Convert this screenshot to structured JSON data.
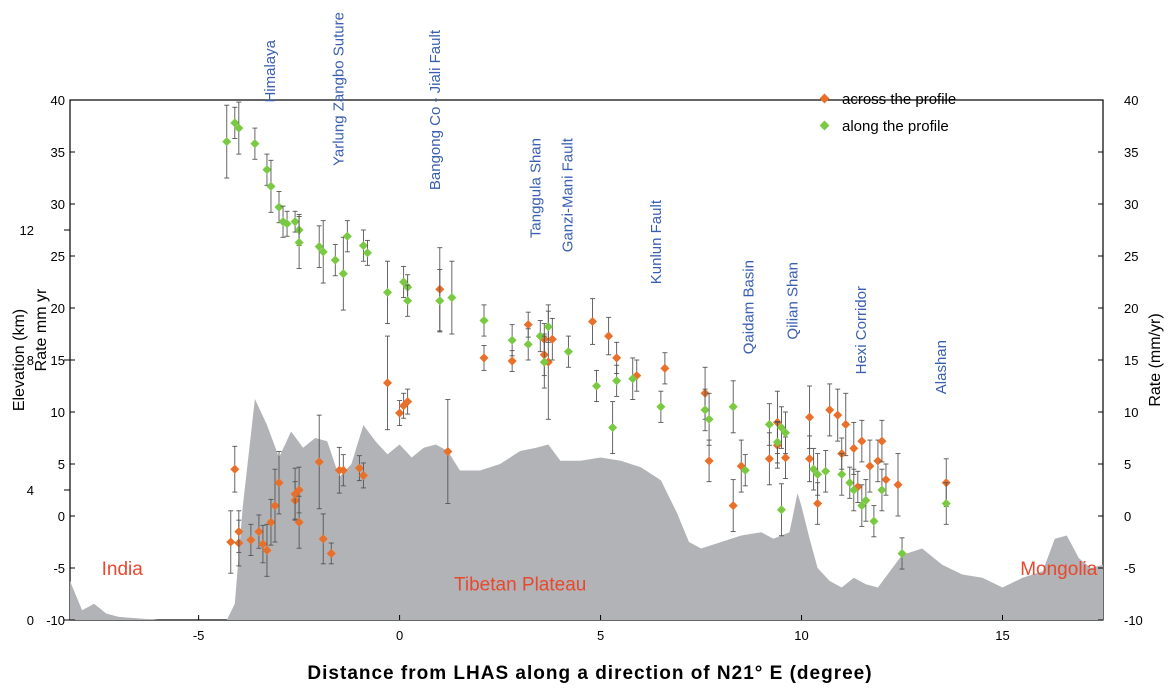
{
  "chart_data": {
    "type": "scatter",
    "xlabel": "Distance from LHAS along a direction of N21° E (degree)",
    "ylabel_left_outer": "Elevation (km)",
    "ylabel_left_inner": "Rate  mm yr",
    "ylabel_right": "Rate (mm/yr)",
    "xlim": [
      -8.2,
      17.5
    ],
    "rate_lim": [
      -10,
      40
    ],
    "elev_lim": [
      0,
      16
    ],
    "x_ticks": [
      -5,
      0,
      5,
      10,
      15
    ],
    "rate_ticks": [
      -10,
      -5,
      0,
      5,
      10,
      15,
      20,
      25,
      30,
      35,
      40
    ],
    "elev_ticks": [
      0,
      4,
      8,
      12
    ],
    "colors": {
      "across": "#e8702a",
      "along": "#7ac943",
      "topography": "#b1b3b6",
      "feature_label": "#3a5fb0",
      "region_label": "#e8482e"
    },
    "regions": [
      {
        "label": "India",
        "x": -6.9,
        "rate": -5
      },
      {
        "label": "Tibetan Plateau",
        "x": 3.0,
        "rate": -6.5
      },
      {
        "label": "Mongolia",
        "x": 16.4,
        "rate": -5
      }
    ],
    "features": [
      {
        "label": "Himalaya",
        "x": -3.1
      },
      {
        "label": "Yarlung Zangbo Suture",
        "x": -1.4
      },
      {
        "label": "Bangong Co - Jiali Fault",
        "x": 1.0
      },
      {
        "label": "Tanggula Shan",
        "x": 3.5
      },
      {
        "label": "Ganzi-Mani Fault",
        "x": 4.3
      },
      {
        "label": "Kunlun Fault",
        "x": 6.5
      },
      {
        "label": "Qaidam Basin",
        "x": 8.8
      },
      {
        "label": "Qilian  Shan",
        "x": 9.9
      },
      {
        "label": "Hexi Corridor",
        "x": 11.6
      },
      {
        "label": "Alashan",
        "x": 13.6
      }
    ],
    "topography": {
      "x": [
        -8.2,
        -7.9,
        -7.6,
        -7.3,
        -7.0,
        -6.5,
        -6.0,
        -5.0,
        -4.3,
        -4.1,
        -3.9,
        -3.6,
        -3.3,
        -3.0,
        -2.7,
        -2.4,
        -2.1,
        -1.8,
        -1.5,
        -1.2,
        -0.9,
        -0.6,
        -0.3,
        0.0,
        0.3,
        0.6,
        0.9,
        1.2,
        1.5,
        2.0,
        2.5,
        3.0,
        3.4,
        3.7,
        4.0,
        4.5,
        5.0,
        5.5,
        6.0,
        6.5,
        6.9,
        7.2,
        7.5,
        8.0,
        8.5,
        9.0,
        9.3,
        9.5,
        9.7,
        9.9,
        10.0,
        10.2,
        10.4,
        10.7,
        11.0,
        11.3,
        11.6,
        11.9,
        12.2,
        12.5,
        13.0,
        13.5,
        14.0,
        14.5,
        15.0,
        15.5,
        16.0,
        16.3,
        16.6,
        16.9,
        17.2,
        17.5
      ],
      "elev": [
        1.2,
        0.3,
        0.5,
        0.2,
        0.1,
        0.05,
        0.0,
        0.0,
        0.0,
        0.5,
        3.5,
        6.8,
        6.0,
        5.0,
        5.8,
        5.3,
        5.6,
        5.5,
        4.4,
        4.8,
        6.0,
        5.5,
        5.1,
        5.4,
        5.0,
        5.3,
        5.4,
        5.2,
        4.6,
        4.6,
        4.8,
        5.2,
        5.3,
        5.4,
        4.9,
        4.9,
        5.0,
        4.9,
        4.7,
        4.3,
        3.3,
        2.4,
        2.2,
        2.4,
        2.6,
        2.7,
        2.5,
        2.6,
        2.7,
        3.9,
        3.5,
        2.5,
        1.6,
        1.2,
        1.0,
        1.3,
        1.1,
        1.0,
        1.5,
        2.0,
        2.2,
        1.7,
        1.4,
        1.3,
        1.0,
        1.3,
        1.5,
        2.5,
        2.6,
        1.9,
        1.6,
        1.7
      ]
    },
    "series": [
      {
        "name": "across the profile",
        "points": [
          {
            "x": -4.1,
            "y": 4.5,
            "e": 2.2
          },
          {
            "x": -4.2,
            "y": -2.5,
            "e": 3.0
          },
          {
            "x": -4.0,
            "y": -2.6,
            "e": 2.2
          },
          {
            "x": -4.0,
            "y": -1.5,
            "e": 2.0
          },
          {
            "x": -3.7,
            "y": -2.3,
            "e": 1.5
          },
          {
            "x": -3.5,
            "y": -1.5,
            "e": 1.6
          },
          {
            "x": -3.4,
            "y": -2.7,
            "e": 1.8
          },
          {
            "x": -3.3,
            "y": -3.3,
            "e": 2.5
          },
          {
            "x": -3.2,
            "y": -0.6,
            "e": 2.2
          },
          {
            "x": -3.1,
            "y": 1.0,
            "e": 3.5
          },
          {
            "x": -3.0,
            "y": 3.2,
            "e": 3.0
          },
          {
            "x": -2.6,
            "y": 1.5,
            "e": 1.8
          },
          {
            "x": -2.6,
            "y": 2.1,
            "e": 2.5
          },
          {
            "x": -2.5,
            "y": 2.5,
            "e": 2.2
          },
          {
            "x": -2.5,
            "y": -0.6,
            "e": 2.5
          },
          {
            "x": -2.0,
            "y": 5.2,
            "e": 4.5
          },
          {
            "x": -1.9,
            "y": -2.2,
            "e": 2.4
          },
          {
            "x": -1.7,
            "y": -3.6,
            "e": 1.0
          },
          {
            "x": -1.5,
            "y": 4.4,
            "e": 2.2
          },
          {
            "x": -1.4,
            "y": 4.4,
            "e": 1.5
          },
          {
            "x": -1.0,
            "y": 4.6,
            "e": 1.2
          },
          {
            "x": -0.9,
            "y": 3.9,
            "e": 1.2
          },
          {
            "x": -0.3,
            "y": 12.8,
            "e": 4.5
          },
          {
            "x": 0.0,
            "y": 9.9,
            "e": 1.2
          },
          {
            "x": 0.1,
            "y": 10.6,
            "e": 1.2
          },
          {
            "x": 0.2,
            "y": 11.0,
            "e": 1.2
          },
          {
            "x": 1.0,
            "y": 21.8,
            "e": 4.0
          },
          {
            "x": 1.2,
            "y": 6.2,
            "e": 5.0
          },
          {
            "x": 2.1,
            "y": 15.2,
            "e": 1.2
          },
          {
            "x": 2.8,
            "y": 14.9,
            "e": 1.0
          },
          {
            "x": 3.2,
            "y": 18.4,
            "e": 1.2
          },
          {
            "x": 3.6,
            "y": 17.0,
            "e": 1.5
          },
          {
            "x": 3.6,
            "y": 15.5,
            "e": 2.0
          },
          {
            "x": 3.7,
            "y": 14.8,
            "e": 5.5
          },
          {
            "x": 3.8,
            "y": 17.0,
            "e": 2.0
          },
          {
            "x": 4.8,
            "y": 18.7,
            "e": 2.2
          },
          {
            "x": 5.2,
            "y": 17.3,
            "e": 1.8
          },
          {
            "x": 5.4,
            "y": 15.2,
            "e": 1.5
          },
          {
            "x": 5.9,
            "y": 13.5,
            "e": 1.5
          },
          {
            "x": 6.6,
            "y": 14.2,
            "e": 1.5
          },
          {
            "x": 7.6,
            "y": 11.8,
            "e": 2.5
          },
          {
            "x": 7.7,
            "y": 5.3,
            "e": 2.0
          },
          {
            "x": 8.3,
            "y": 1.0,
            "e": 2.5
          },
          {
            "x": 8.5,
            "y": 4.8,
            "e": 2.5
          },
          {
            "x": 9.2,
            "y": 5.5,
            "e": 2.5
          },
          {
            "x": 9.4,
            "y": 9.0,
            "e": 3.0
          },
          {
            "x": 9.4,
            "y": 6.8,
            "e": 2.2
          },
          {
            "x": 9.6,
            "y": 5.6,
            "e": 2.0
          },
          {
            "x": 10.2,
            "y": 9.5,
            "e": 3.0
          },
          {
            "x": 10.2,
            "y": 5.5,
            "e": 2.2
          },
          {
            "x": 10.4,
            "y": 1.2,
            "e": 2.0
          },
          {
            "x": 10.7,
            "y": 10.2,
            "e": 2.5
          },
          {
            "x": 10.9,
            "y": 9.7,
            "e": 2.5
          },
          {
            "x": 11.1,
            "y": 8.8,
            "e": 3.0
          },
          {
            "x": 11.0,
            "y": 6.0,
            "e": 1.5
          },
          {
            "x": 11.3,
            "y": 6.5,
            "e": 2.5
          },
          {
            "x": 11.4,
            "y": 2.8,
            "e": 1.5
          },
          {
            "x": 11.5,
            "y": 7.2,
            "e": 2.0
          },
          {
            "x": 11.7,
            "y": 4.8,
            "e": 2.5
          },
          {
            "x": 11.9,
            "y": 5.3,
            "e": 2.0
          },
          {
            "x": 12.0,
            "y": 7.2,
            "e": 2.0
          },
          {
            "x": 12.1,
            "y": 3.5,
            "e": 1.5
          },
          {
            "x": 12.4,
            "y": 3.0,
            "e": 3.0
          },
          {
            "x": 13.6,
            "y": 3.2,
            "e": 2.3
          }
        ]
      },
      {
        "name": "along the profile",
        "points": [
          {
            "x": -4.3,
            "y": 36.0,
            "e": 3.5
          },
          {
            "x": -4.1,
            "y": 37.8,
            "e": 1.5
          },
          {
            "x": -4.0,
            "y": 37.3,
            "e": 2.5
          },
          {
            "x": -3.6,
            "y": 35.8,
            "e": 1.5
          },
          {
            "x": -3.3,
            "y": 33.3,
            "e": 1.5
          },
          {
            "x": -3.2,
            "y": 31.7,
            "e": 2.5
          },
          {
            "x": -3.0,
            "y": 29.7,
            "e": 1.5
          },
          {
            "x": -2.9,
            "y": 28.3,
            "e": 1.5
          },
          {
            "x": -2.8,
            "y": 28.1,
            "e": 1.2
          },
          {
            "x": -2.6,
            "y": 28.3,
            "e": 1.0
          },
          {
            "x": -2.5,
            "y": 27.5,
            "e": 1.5
          },
          {
            "x": -2.5,
            "y": 26.3,
            "e": 2.5
          },
          {
            "x": -2.0,
            "y": 25.9,
            "e": 2.0
          },
          {
            "x": -1.9,
            "y": 25.4,
            "e": 3.0
          },
          {
            "x": -1.6,
            "y": 24.6,
            "e": 1.5
          },
          {
            "x": -1.4,
            "y": 23.3,
            "e": 3.5
          },
          {
            "x": -1.3,
            "y": 26.9,
            "e": 1.5
          },
          {
            "x": -0.9,
            "y": 26.0,
            "e": 1.5
          },
          {
            "x": -0.8,
            "y": 25.3,
            "e": 1.2
          },
          {
            "x": -0.3,
            "y": 21.5,
            "e": 3.0
          },
          {
            "x": 0.1,
            "y": 22.5,
            "e": 1.5
          },
          {
            "x": 0.2,
            "y": 22.0,
            "e": 1.2
          },
          {
            "x": 0.2,
            "y": 20.7,
            "e": 1.5
          },
          {
            "x": 1.0,
            "y": 20.7,
            "e": 3.0
          },
          {
            "x": 1.3,
            "y": 21.0,
            "e": 3.5
          },
          {
            "x": 2.1,
            "y": 18.8,
            "e": 1.5
          },
          {
            "x": 2.8,
            "y": 16.9,
            "e": 1.5
          },
          {
            "x": 3.2,
            "y": 16.5,
            "e": 1.5
          },
          {
            "x": 3.5,
            "y": 17.3,
            "e": 1.5
          },
          {
            "x": 3.6,
            "y": 14.8,
            "e": 2.5
          },
          {
            "x": 3.7,
            "y": 18.2,
            "e": 1.5
          },
          {
            "x": 4.2,
            "y": 15.8,
            "e": 1.5
          },
          {
            "x": 4.9,
            "y": 12.5,
            "e": 1.5
          },
          {
            "x": 5.3,
            "y": 8.5,
            "e": 2.5
          },
          {
            "x": 5.4,
            "y": 13.0,
            "e": 1.5
          },
          {
            "x": 5.8,
            "y": 13.2,
            "e": 2.0
          },
          {
            "x": 6.5,
            "y": 10.5,
            "e": 1.5
          },
          {
            "x": 7.6,
            "y": 10.2,
            "e": 2.0
          },
          {
            "x": 7.7,
            "y": 9.3,
            "e": 2.5
          },
          {
            "x": 8.3,
            "y": 10.5,
            "e": 2.5
          },
          {
            "x": 8.6,
            "y": 4.4,
            "e": 1.5
          },
          {
            "x": 9.2,
            "y": 8.8,
            "e": 2.0
          },
          {
            "x": 9.4,
            "y": 7.1,
            "e": 2.0
          },
          {
            "x": 9.5,
            "y": 0.6,
            "e": 2.5
          },
          {
            "x": 9.5,
            "y": 8.5,
            "e": 2.0
          },
          {
            "x": 9.6,
            "y": 8.0,
            "e": 2.0
          },
          {
            "x": 10.3,
            "y": 4.5,
            "e": 2.0
          },
          {
            "x": 10.4,
            "y": 4.0,
            "e": 2.0
          },
          {
            "x": 10.6,
            "y": 4.3,
            "e": 2.0
          },
          {
            "x": 11.0,
            "y": 4.0,
            "e": 2.0
          },
          {
            "x": 11.2,
            "y": 3.2,
            "e": 1.5
          },
          {
            "x": 11.3,
            "y": 2.5,
            "e": 2.0
          },
          {
            "x": 11.5,
            "y": 1.0,
            "e": 2.0
          },
          {
            "x": 11.6,
            "y": 1.5,
            "e": 2.0
          },
          {
            "x": 11.8,
            "y": -0.5,
            "e": 1.5
          },
          {
            "x": 12.0,
            "y": 2.5,
            "e": 2.0
          },
          {
            "x": 12.5,
            "y": -3.6,
            "e": 1.5
          },
          {
            "x": 13.6,
            "y": 1.2,
            "e": 2.0
          }
        ]
      }
    ]
  }
}
